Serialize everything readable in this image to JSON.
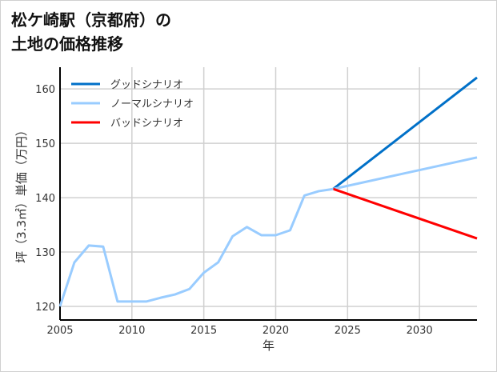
{
  "chart_data": {
    "type": "line",
    "title": "松ケ崎駅（京都府）の\n土地の価格推移",
    "xlabel": "年",
    "ylabel": "坪（3.3㎡）単価（万円）",
    "xlim": [
      2005,
      2034
    ],
    "ylim": [
      117.5,
      164
    ],
    "xticks": [
      "2005",
      "2010",
      "2015",
      "2020",
      "2025",
      "2030"
    ],
    "yticks": [
      "120",
      "130",
      "140",
      "150",
      "160"
    ],
    "grid": true,
    "legend_position": "top-left",
    "history": {
      "x": [
        2005,
        2006,
        2007,
        2008,
        2009,
        2010,
        2011,
        2012,
        2013,
        2014,
        2015,
        2016,
        2017,
        2018,
        2019,
        2020,
        2021,
        2022,
        2023,
        2024
      ],
      "y": [
        120.0,
        128.1,
        131.2,
        131.0,
        120.9,
        120.9,
        120.9,
        121.6,
        122.2,
        123.2,
        126.2,
        128.1,
        132.9,
        134.6,
        133.1,
        133.1,
        134.0,
        140.4,
        141.2,
        141.6
      ]
    },
    "series": [
      {
        "name": "グッドシナリオ",
        "color": "#0070c8",
        "x": [
          2024,
          2034
        ],
        "y": [
          141.6,
          162.1
        ]
      },
      {
        "name": "ノーマルシナリオ",
        "color": "#99ccff",
        "x": [
          2024,
          2034
        ],
        "y": [
          141.6,
          147.4
        ]
      },
      {
        "name": "バッドシナリオ",
        "color": "#ff0000",
        "x": [
          2024,
          2034
        ],
        "y": [
          141.6,
          132.5
        ]
      }
    ]
  }
}
